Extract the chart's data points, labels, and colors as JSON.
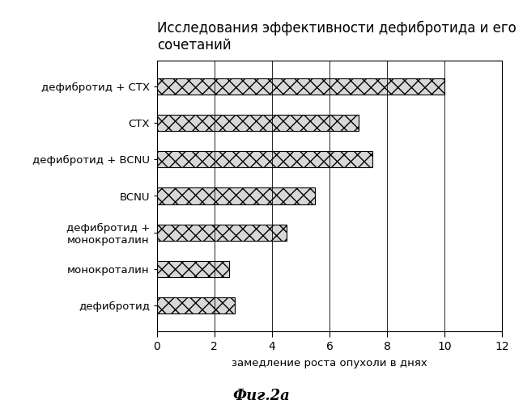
{
  "title": "Исследования эффективности дефибротида и его\nсочетаний",
  "xlabel": "замедление роста опухоли в днях",
  "caption": "Фиг.2а",
  "categories": [
    "дефибротид",
    "монокроталин",
    "дефибротид +\nмонокроталин",
    "BCNU",
    "дефибротид + BCNU",
    "CTX",
    "дефибротид + CTX"
  ],
  "values": [
    2.7,
    2.5,
    4.5,
    5.5,
    7.5,
    7.0,
    10.0
  ],
  "xlim": [
    0,
    12
  ],
  "xticks": [
    0,
    2,
    4,
    6,
    8,
    10,
    12
  ],
  "bar_color": "#d8d8d8",
  "background_color": "#ffffff",
  "title_fontsize": 12,
  "label_fontsize": 9.5,
  "tick_fontsize": 10,
  "caption_fontsize": 13,
  "bar_height": 0.45
}
